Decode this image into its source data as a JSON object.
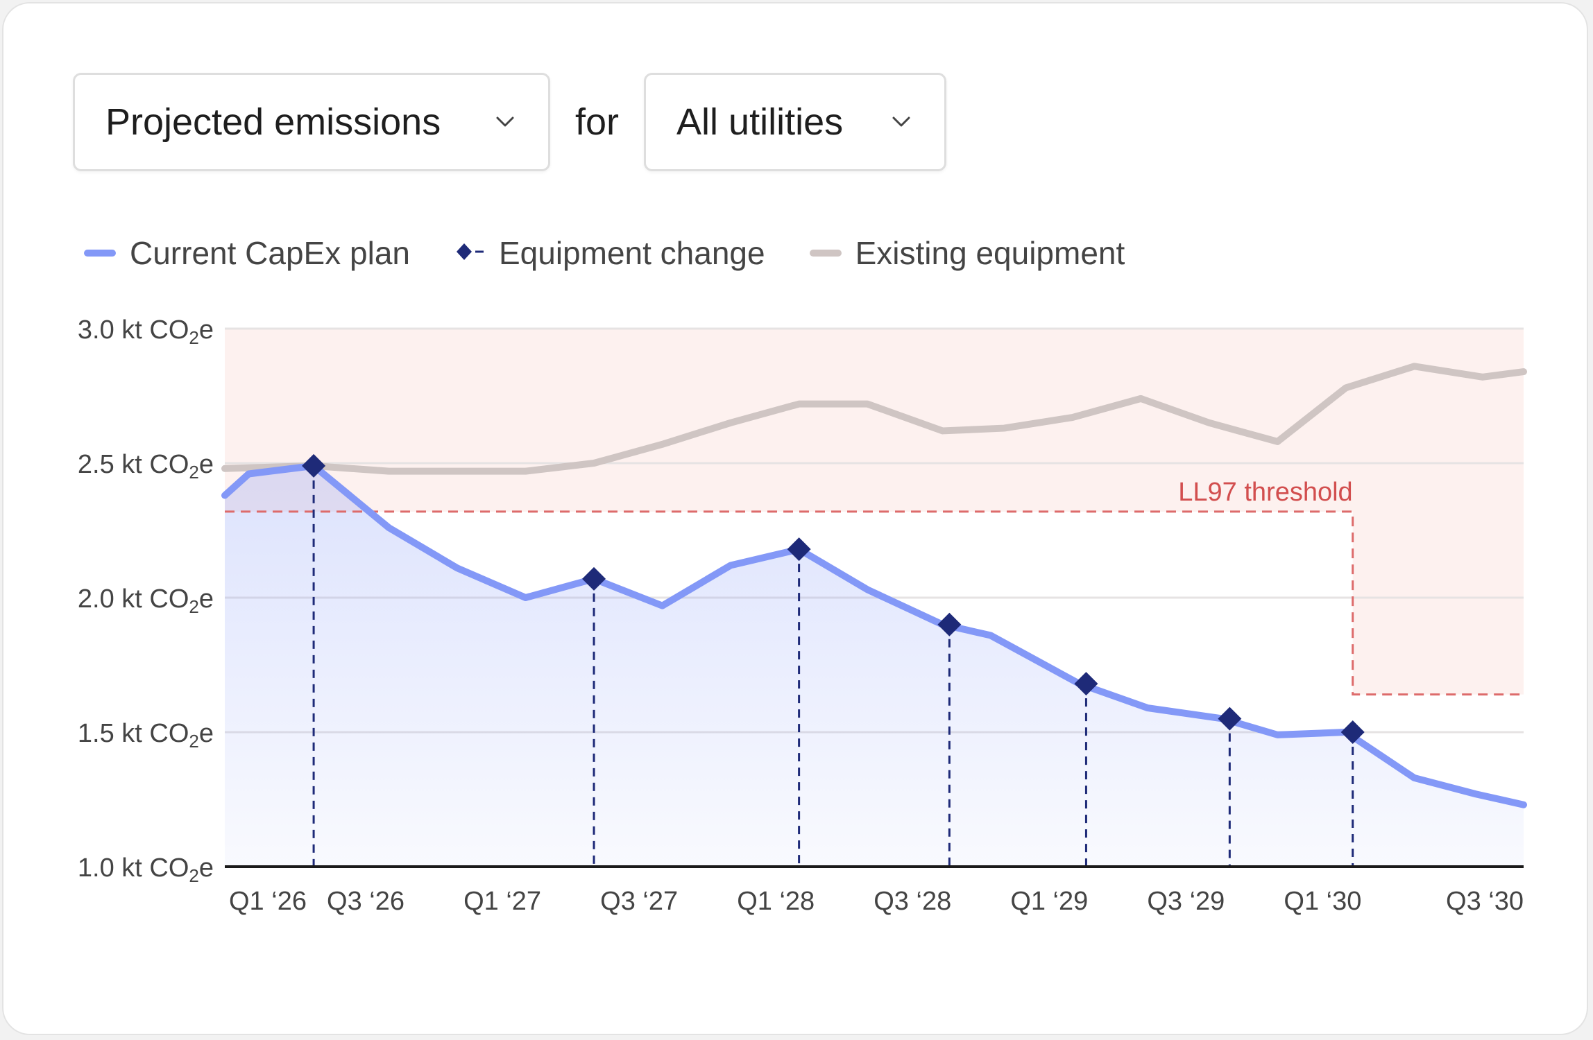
{
  "controls": {
    "metric": "Projected emissions",
    "connector": "for",
    "utility": "All utilities"
  },
  "legend": {
    "plan": "Current CapEx plan",
    "change": "Equipment change",
    "existing": "Existing equipment"
  },
  "colors": {
    "plan": "#8398f7",
    "marker": "#1e2a78",
    "existing": "#cfc5c3",
    "threshold": "#dd6b6b",
    "threshold_fill": "#fdf1ef"
  },
  "chart_data": {
    "type": "line",
    "title": "Projected emissions for All utilities",
    "ylabel": "kt CO2e",
    "ylim": [
      1.0,
      3.0
    ],
    "xlim": [
      0,
      19
    ],
    "y_ticks": [
      {
        "value": 3.0,
        "main": "3.0 kt CO",
        "sub": "2",
        "tail": "e"
      },
      {
        "value": 2.5,
        "main": "2.5 kt CO",
        "sub": "2",
        "tail": "e"
      },
      {
        "value": 2.0,
        "main": "2.0 kt CO",
        "sub": "2",
        "tail": "e"
      },
      {
        "value": 1.5,
        "main": "1.5 kt CO",
        "sub": "2",
        "tail": "e"
      },
      {
        "value": 1.0,
        "main": "1.0 kt CO",
        "sub": "2",
        "tail": "e"
      }
    ],
    "x_ticks": [
      {
        "value": 0,
        "label": "Q1 ‘26"
      },
      {
        "value": 2,
        "label": "Q3 ‘26"
      },
      {
        "value": 4,
        "label": "Q1 ‘27"
      },
      {
        "value": 6,
        "label": "Q3 ‘27"
      },
      {
        "value": 8,
        "label": "Q1 ‘28"
      },
      {
        "value": 10,
        "label": "Q3 ‘28"
      },
      {
        "value": 12,
        "label": "Q1 ‘29"
      },
      {
        "value": 14,
        "label": "Q3 ‘29"
      },
      {
        "value": 16,
        "label": "Q1 ‘30"
      },
      {
        "value": 18,
        "label": "Q3 ‘30"
      }
    ],
    "series": [
      {
        "name": "Current CapEx plan",
        "points": [
          [
            0,
            2.38
          ],
          [
            0.35,
            2.46
          ],
          [
            1.3,
            2.49
          ],
          [
            2.4,
            2.26
          ],
          [
            3.4,
            2.11
          ],
          [
            4.4,
            2.0
          ],
          [
            5.4,
            2.07
          ],
          [
            6.4,
            1.97
          ],
          [
            7.4,
            2.12
          ],
          [
            8.4,
            2.18
          ],
          [
            9.4,
            2.03
          ],
          [
            10.5,
            1.9
          ],
          [
            11.2,
            1.86
          ],
          [
            12.5,
            1.68
          ],
          [
            13.5,
            1.59
          ],
          [
            14.6,
            1.55
          ],
          [
            15.4,
            1.49
          ],
          [
            16.4,
            1.5
          ],
          [
            17.4,
            1.33
          ],
          [
            18.3,
            1.27
          ],
          [
            19,
            1.23
          ]
        ]
      },
      {
        "name": "Existing equipment",
        "points": [
          [
            0,
            2.48
          ],
          [
            1.3,
            2.49
          ],
          [
            2.4,
            2.47
          ],
          [
            4.4,
            2.47
          ],
          [
            5.4,
            2.5
          ],
          [
            6.4,
            2.57
          ],
          [
            7.4,
            2.65
          ],
          [
            8.4,
            2.72
          ],
          [
            9.4,
            2.72
          ],
          [
            10.5,
            2.62
          ],
          [
            11.4,
            2.63
          ],
          [
            12.4,
            2.67
          ],
          [
            13.4,
            2.74
          ],
          [
            14.4,
            2.65
          ],
          [
            15.4,
            2.58
          ],
          [
            16.4,
            2.78
          ],
          [
            17.4,
            2.86
          ],
          [
            18.4,
            2.82
          ],
          [
            19,
            2.84
          ]
        ]
      }
    ],
    "equipment_changes": [
      [
        1.3,
        2.49
      ],
      [
        5.4,
        2.07
      ],
      [
        8.4,
        2.18
      ],
      [
        10.6,
        1.9
      ],
      [
        12.6,
        1.68
      ],
      [
        14.7,
        1.55
      ],
      [
        16.5,
        1.5
      ]
    ],
    "threshold": {
      "label": "LL97 threshold",
      "steps": [
        [
          0,
          2.32
        ],
        [
          16.5,
          2.32
        ],
        [
          16.5,
          1.64
        ],
        [
          19,
          1.64
        ]
      ]
    }
  }
}
